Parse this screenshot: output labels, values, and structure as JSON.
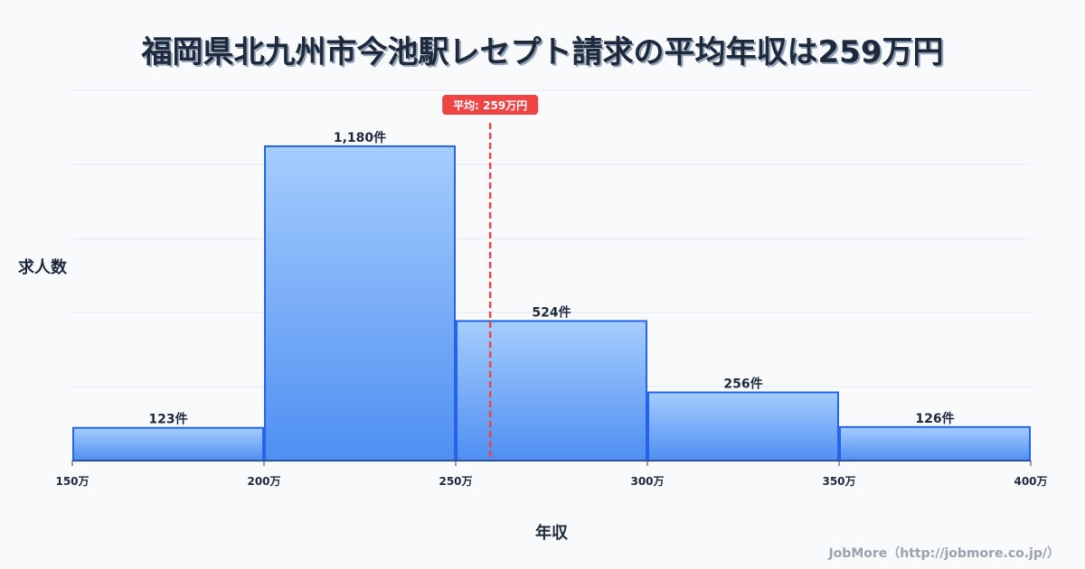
{
  "chart_data": {
    "type": "bar",
    "title": "福岡県北九州市今池駅レセプト請求の平均年収は259万円",
    "xlabel": "年収",
    "ylabel": "求人数",
    "bin_edges": [
      150,
      200,
      250,
      300,
      350,
      400
    ],
    "tick_labels": [
      "150万",
      "200万",
      "250万",
      "300万",
      "350万",
      "400万"
    ],
    "values": [
      123,
      1180,
      524,
      256,
      126
    ],
    "value_labels": [
      "123件",
      "1,180件",
      "524件",
      "256件",
      "126件"
    ],
    "ylim": [
      0,
      1390
    ],
    "xlim": [
      150,
      400
    ],
    "grid": true,
    "mean": 259,
    "mean_label": "平均: 259万円",
    "colors": {
      "bar_top": "#a5cdfd",
      "bar_bottom": "#4f8ff2",
      "bar_stroke": "#2563eb",
      "mean": "#ef4444"
    }
  },
  "credit": "JobMore（http://jobmore.co.jp/）"
}
